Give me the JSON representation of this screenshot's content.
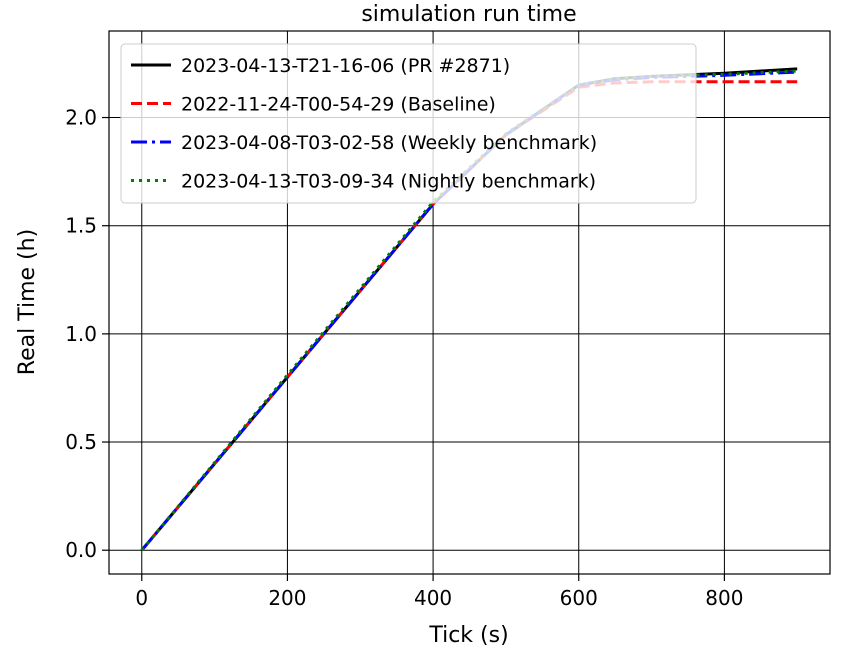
{
  "chart_data": {
    "type": "line",
    "title": "simulation run time",
    "xlabel": "Tick (s)",
    "ylabel": "Real Time (h)",
    "xlim": [
      -45,
      945
    ],
    "ylim": [
      -0.11,
      2.4
    ],
    "xticks": [
      0,
      200,
      400,
      600,
      800
    ],
    "yticks": [
      0.0,
      0.5,
      1.0,
      1.5,
      2.0
    ],
    "xtick_labels": [
      "0",
      "200",
      "400",
      "600",
      "800"
    ],
    "ytick_labels": [
      "0.0",
      "0.5",
      "1.0",
      "1.5",
      "2.0"
    ],
    "grid": true,
    "legend_position": "upper-left",
    "series": [
      {
        "name": "2023-04-13-T21-16-06 (PR #2871)",
        "color": "#000000",
        "style": "solid",
        "x": [
          0,
          100,
          200,
          300,
          400,
          500,
          600,
          650,
          700,
          800,
          900
        ],
        "y": [
          0.0,
          0.4,
          0.8,
          1.2,
          1.6,
          1.92,
          2.15,
          2.18,
          2.19,
          2.205,
          2.225
        ]
      },
      {
        "name": "2022-11-24-T00-54-29 (Baseline)",
        "color": "#ff0000",
        "style": "dashed",
        "x": [
          0,
          100,
          200,
          300,
          400,
          500,
          600,
          650,
          700,
          800,
          900
        ],
        "y": [
          0.0,
          0.4,
          0.8,
          1.2,
          1.6,
          1.92,
          2.14,
          2.16,
          2.165,
          2.165,
          2.165
        ]
      },
      {
        "name": "2023-04-08-T03-02-58 (Weekly benchmark)",
        "color": "#0000ff",
        "style": "dashdot",
        "x": [
          0,
          100,
          200,
          300,
          400,
          500,
          600,
          650,
          700,
          800,
          900
        ],
        "y": [
          0.0,
          0.4,
          0.8,
          1.2,
          1.6,
          1.92,
          2.15,
          2.175,
          2.185,
          2.195,
          2.21
        ]
      },
      {
        "name": "2023-04-13-T03-09-34 (Nightly benchmark)",
        "color": "#008000",
        "style": "dotted",
        "x": [
          0,
          100,
          200,
          300,
          400,
          500,
          600,
          650,
          700,
          800,
          900
        ],
        "y": [
          0.0,
          0.405,
          0.81,
          1.21,
          1.61,
          1.925,
          2.15,
          2.18,
          2.19,
          2.2,
          2.215
        ]
      }
    ]
  }
}
